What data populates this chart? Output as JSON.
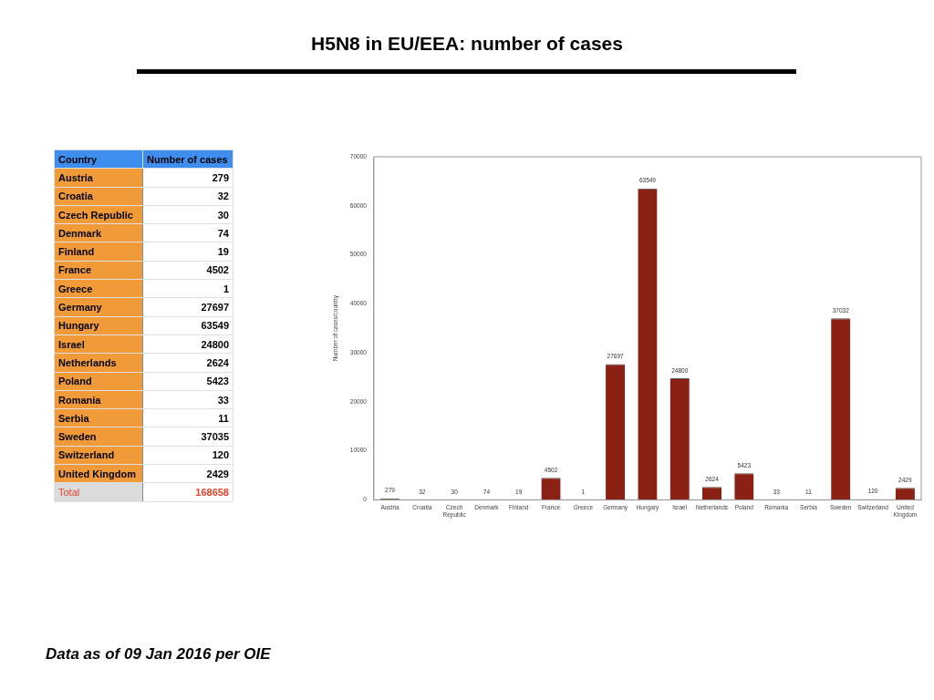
{
  "chart_data": [
    {
      "type": "other",
      "xlabel": "Country",
      "ylabel": "Number of cases",
      "categories": [
        "Austria",
        "Croatia",
        "Czech Republic",
        "Denmark",
        "Finland",
        "France",
        "Greece",
        "Germany",
        "Hungary",
        "Israel",
        "Netherlands",
        "Poland",
        "Romania",
        "Serbia",
        "Sweden",
        "Switzerland",
        "United Kingdom"
      ],
      "values": [
        279,
        32,
        30,
        74,
        19,
        4502,
        1,
        27697,
        63549,
        24800,
        2624,
        5423,
        33,
        11,
        37035,
        120,
        2429
      ],
      "data_labels": true,
      "annotations": [
        "Total"
      ],
      "totals": [
        "168658"
      ]
    },
    {
      "type": "bar",
      "title": "H5N8 in EU/EEA: number of cases",
      "ylabel": "Number of cases/country",
      "categories": [
        "Austria",
        "Croatia",
        "Czech Republic",
        "Denmark",
        "Finland",
        "France",
        "Greece",
        "Germany",
        "Hungary",
        "Israel",
        "Netherlands",
        "Poland",
        "Romania",
        "Serbia",
        "Sweden",
        "Switzerland",
        "United Kingdom"
      ],
      "values": [
        279,
        32,
        30,
        74,
        19,
        4502,
        1,
        27697,
        63549,
        24800,
        2624,
        5423,
        33,
        11,
        37032,
        120,
        2429
      ],
      "color": "#8b2014",
      "ylim": [
        0,
        70000
      ],
      "yticks": [
        0,
        10000,
        20000,
        30000,
        40000,
        50000,
        60000,
        70000
      ],
      "grid": false,
      "legend": false,
      "data_labels": true,
      "annotations": [
        "Data as of 09 Jan 2016 per OIE"
      ]
    }
  ]
}
